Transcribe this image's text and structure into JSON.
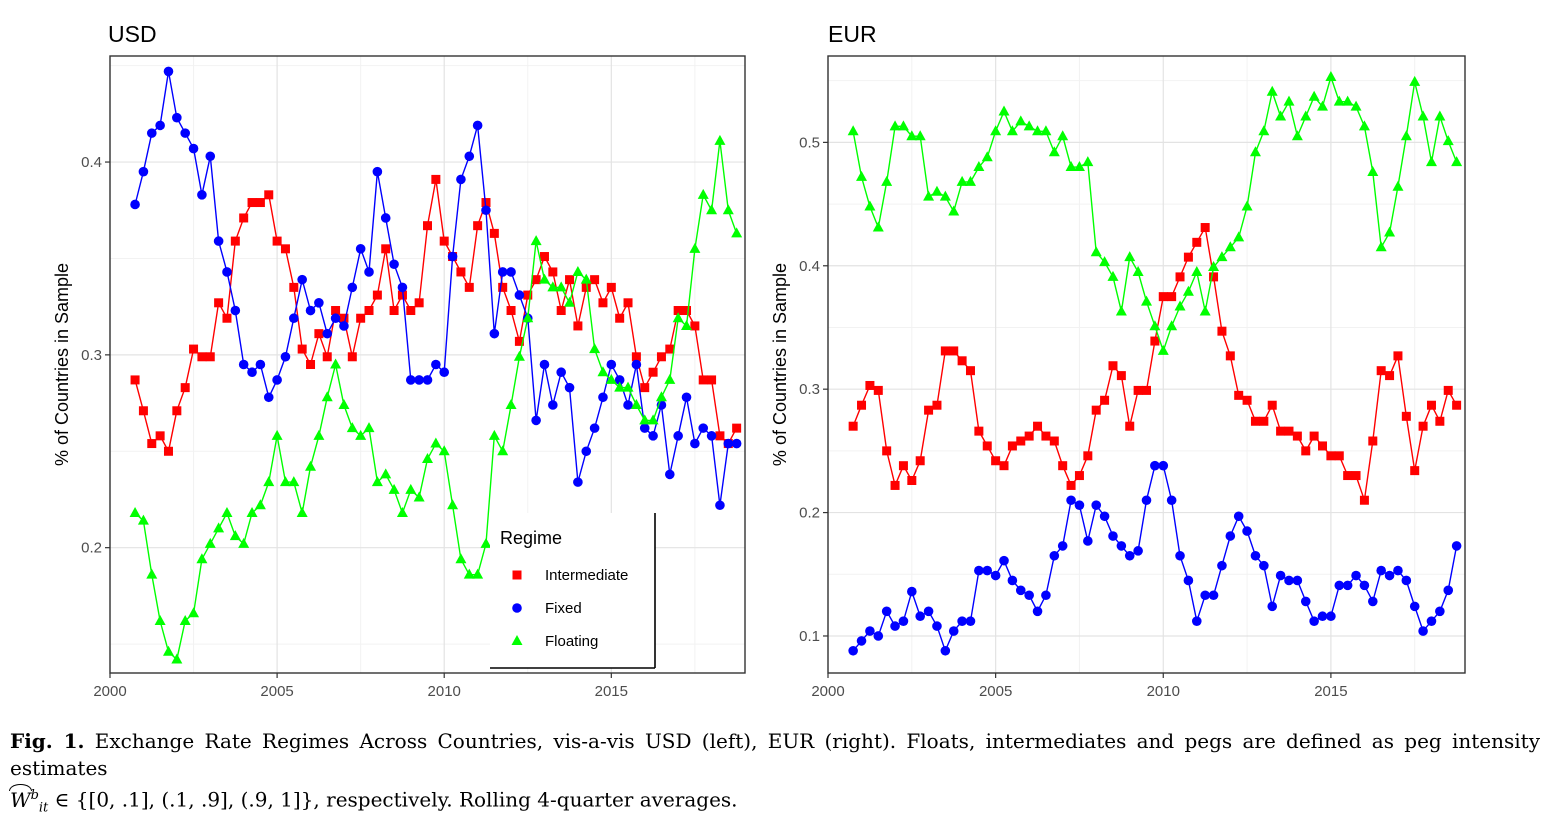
{
  "chart_data": [
    {
      "type": "line",
      "title": "USD",
      "xlabel": "",
      "ylabel": "% of Countries in Sample",
      "xlim": [
        2000,
        2019
      ],
      "ylim": [
        0.135,
        0.455
      ],
      "xticks": [
        2000,
        2005,
        2010,
        2015
      ],
      "yticks": [
        0.2,
        0.3,
        0.4
      ],
      "grid": true,
      "legend": {
        "title": "Regime",
        "placement": "bottom-center",
        "entries": [
          "Intermediate",
          "Fixed",
          "Floating"
        ]
      },
      "x": [
        2000.75,
        2001.0,
        2001.25,
        2001.5,
        2001.75,
        2002.0,
        2002.25,
        2002.5,
        2002.75,
        2003.0,
        2003.25,
        2003.5,
        2003.75,
        2004.0,
        2004.25,
        2004.5,
        2004.75,
        2005.0,
        2005.25,
        2005.5,
        2005.75,
        2006.0,
        2006.25,
        2006.5,
        2006.75,
        2007.0,
        2007.25,
        2007.5,
        2007.75,
        2008.0,
        2008.25,
        2008.5,
        2008.75,
        2009.0,
        2009.25,
        2009.5,
        2009.75,
        2010.0,
        2010.25,
        2010.5,
        2010.75,
        2011.0,
        2011.25,
        2011.5,
        2011.75,
        2012.0,
        2012.25,
        2012.5,
        2012.75,
        2013.0,
        2013.25,
        2013.5,
        2013.75,
        2014.0,
        2014.25,
        2014.5,
        2014.75,
        2015.0,
        2015.25,
        2015.5,
        2015.75,
        2016.0,
        2016.25,
        2016.5,
        2016.75,
        2017.0,
        2017.25,
        2017.5,
        2017.75,
        2018.0,
        2018.25,
        2018.5,
        2018.75
      ],
      "series": [
        {
          "name": "Intermediate",
          "color": "#ff0000",
          "marker": "square",
          "values": [
            0.287,
            0.271,
            0.254,
            0.258,
            0.25,
            0.271,
            0.283,
            0.303,
            0.299,
            0.299,
            0.327,
            0.319,
            0.359,
            0.371,
            0.379,
            0.379,
            0.383,
            0.359,
            0.355,
            0.335,
            0.303,
            0.295,
            0.311,
            0.299,
            0.323,
            0.319,
            0.299,
            0.319,
            0.323,
            0.331,
            0.355,
            0.323,
            0.331,
            0.323,
            0.327,
            0.367,
            0.391,
            0.359,
            0.351,
            0.343,
            0.335,
            0.367,
            0.379,
            0.363,
            0.335,
            0.323,
            0.307,
            0.331,
            0.339,
            0.351,
            0.343,
            0.323,
            0.339,
            0.315,
            0.335,
            0.339,
            0.327,
            0.335,
            0.319,
            0.327,
            0.299,
            0.283,
            0.291,
            0.299,
            0.303,
            0.323,
            0.323,
            0.315,
            0.287,
            0.287,
            0.258,
            0.254,
            0.262
          ]
        },
        {
          "name": "Fixed",
          "color": "#0000ff",
          "marker": "circle",
          "values": [
            0.378,
            0.395,
            0.415,
            0.419,
            0.447,
            0.423,
            0.415,
            0.407,
            0.383,
            0.403,
            0.359,
            0.343,
            0.323,
            0.295,
            0.291,
            0.295,
            0.278,
            0.287,
            0.299,
            0.319,
            0.339,
            0.323,
            0.327,
            0.311,
            0.319,
            0.315,
            0.335,
            0.355,
            0.343,
            0.395,
            0.371,
            0.347,
            0.335,
            0.287,
            0.287,
            0.287,
            0.295,
            0.291,
            0.351,
            0.391,
            0.403,
            0.419,
            0.375,
            0.311,
            0.343,
            0.343,
            0.331,
            0.319,
            0.266,
            0.295,
            0.274,
            0.291,
            0.283,
            0.234,
            0.25,
            0.262,
            0.278,
            0.295,
            0.287,
            0.274,
            0.295,
            0.262,
            0.258,
            0.274,
            0.238,
            0.258,
            0.278,
            0.254,
            0.262,
            0.258,
            0.222,
            0.254,
            0.254
          ]
        },
        {
          "name": "Floating",
          "color": "#00ff00",
          "marker": "triangle",
          "values": [
            0.218,
            0.214,
            0.186,
            0.162,
            0.146,
            0.142,
            0.162,
            0.166,
            0.194,
            0.202,
            0.21,
            0.218,
            0.206,
            0.202,
            0.218,
            0.222,
            0.234,
            0.258,
            0.234,
            0.234,
            0.218,
            0.242,
            0.258,
            0.278,
            0.295,
            0.274,
            0.262,
            0.258,
            0.262,
            0.234,
            0.238,
            0.23,
            0.218,
            0.23,
            0.226,
            0.246,
            0.254,
            0.25,
            0.222,
            0.194,
            0.186,
            0.186,
            0.202,
            0.258,
            0.25,
            0.274,
            0.299,
            0.319,
            0.359,
            0.339,
            0.335,
            0.335,
            0.327,
            0.343,
            0.339,
            0.303,
            0.291,
            0.287,
            0.283,
            0.283,
            0.274,
            0.266,
            0.266,
            0.278,
            0.287,
            0.319,
            0.315,
            0.355,
            0.383,
            0.375,
            0.411,
            0.375,
            0.363
          ]
        }
      ]
    },
    {
      "type": "line",
      "title": "EUR",
      "xlabel": "",
      "ylabel": "% of Countries in Sample",
      "xlim": [
        2000,
        2019
      ],
      "ylim": [
        0.07,
        0.57
      ],
      "xticks": [
        2000,
        2005,
        2010,
        2015
      ],
      "yticks": [
        0.1,
        0.2,
        0.3,
        0.4,
        0.5
      ],
      "grid": true,
      "x": [
        2000.75,
        2001.0,
        2001.25,
        2001.5,
        2001.75,
        2002.0,
        2002.25,
        2002.5,
        2002.75,
        2003.0,
        2003.25,
        2003.5,
        2003.75,
        2004.0,
        2004.25,
        2004.5,
        2004.75,
        2005.0,
        2005.25,
        2005.5,
        2005.75,
        2006.0,
        2006.25,
        2006.5,
        2006.75,
        2007.0,
        2007.25,
        2007.5,
        2007.75,
        2008.0,
        2008.25,
        2008.5,
        2008.75,
        2009.0,
        2009.25,
        2009.5,
        2009.75,
        2010.0,
        2010.25,
        2010.5,
        2010.75,
        2011.0,
        2011.25,
        2011.5,
        2011.75,
        2012.0,
        2012.25,
        2012.5,
        2012.75,
        2013.0,
        2013.25,
        2013.5,
        2013.75,
        2014.0,
        2014.25,
        2014.5,
        2014.75,
        2015.0,
        2015.25,
        2015.5,
        2015.75,
        2016.0,
        2016.25,
        2016.5,
        2016.75,
        2017.0,
        2017.25,
        2017.5,
        2017.75,
        2018.0,
        2018.25,
        2018.5,
        2018.75
      ],
      "series": [
        {
          "name": "Intermediate",
          "color": "#ff0000",
          "marker": "square",
          "values": [
            0.27,
            0.287,
            0.303,
            0.299,
            0.25,
            0.222,
            0.238,
            0.226,
            0.242,
            0.283,
            0.287,
            0.331,
            0.331,
            0.323,
            0.315,
            0.266,
            0.254,
            0.242,
            0.238,
            0.254,
            0.258,
            0.262,
            0.27,
            0.262,
            0.258,
            0.238,
            0.222,
            0.23,
            0.246,
            0.283,
            0.291,
            0.319,
            0.311,
            0.27,
            0.299,
            0.299,
            0.339,
            0.375,
            0.375,
            0.391,
            0.407,
            0.419,
            0.431,
            0.391,
            0.347,
            0.327,
            0.295,
            0.291,
            0.274,
            0.274,
            0.287,
            0.266,
            0.266,
            0.262,
            0.25,
            0.262,
            0.254,
            0.246,
            0.246,
            0.23,
            0.23,
            0.21,
            0.258,
            0.315,
            0.311,
            0.327,
            0.278,
            0.234,
            0.27,
            0.287,
            0.274,
            0.299,
            0.287
          ]
        },
        {
          "name": "Fixed",
          "color": "#0000ff",
          "marker": "circle",
          "values": [
            0.088,
            0.096,
            0.104,
            0.1,
            0.12,
            0.108,
            0.112,
            0.136,
            0.116,
            0.12,
            0.108,
            0.088,
            0.104,
            0.112,
            0.112,
            0.153,
            0.153,
            0.149,
            0.161,
            0.145,
            0.137,
            0.133,
            0.12,
            0.133,
            0.165,
            0.173,
            0.21,
            0.206,
            0.177,
            0.206,
            0.197,
            0.181,
            0.173,
            0.165,
            0.169,
            0.21,
            0.238,
            0.238,
            0.21,
            0.165,
            0.145,
            0.112,
            0.133,
            0.133,
            0.157,
            0.181,
            0.197,
            0.185,
            0.165,
            0.157,
            0.124,
            0.149,
            0.145,
            0.145,
            0.128,
            0.112,
            0.116,
            0.116,
            0.141,
            0.141,
            0.149,
            0.141,
            0.128,
            0.153,
            0.149,
            0.153,
            0.145,
            0.124,
            0.104,
            0.112,
            0.12,
            0.137,
            0.173
          ]
        },
        {
          "name": "Floating",
          "color": "#00ff00",
          "marker": "triangle",
          "values": [
            0.509,
            0.472,
            0.448,
            0.431,
            0.468,
            0.513,
            0.513,
            0.505,
            0.505,
            0.456,
            0.46,
            0.456,
            0.444,
            0.468,
            0.468,
            0.48,
            0.488,
            0.509,
            0.525,
            0.509,
            0.517,
            0.513,
            0.509,
            0.509,
            0.492,
            0.505,
            0.48,
            0.48,
            0.484,
            0.411,
            0.403,
            0.391,
            0.363,
            0.407,
            0.395,
            0.371,
            0.351,
            0.331,
            0.351,
            0.367,
            0.379,
            0.395,
            0.363,
            0.399,
            0.407,
            0.415,
            0.423,
            0.448,
            0.492,
            0.509,
            0.541,
            0.521,
            0.533,
            0.505,
            0.521,
            0.537,
            0.529,
            0.553,
            0.533,
            0.533,
            0.529,
            0.513,
            0.476,
            0.415,
            0.427,
            0.464,
            0.505,
            0.549,
            0.521,
            0.484,
            0.521,
            0.501,
            0.484
          ]
        }
      ]
    }
  ],
  "caption": {
    "label": "Fig. 1.",
    "text1": "Exchange Rate Regimes Across Countries, vis-a-vis USD (left), EUR (right). Floats, intermediates and pegs are defined as peg intensity estimates",
    "symbol": "W",
    "sup": "b",
    "sub": "it",
    "text2": "∈ {[0, .1], (.1, .9], (.9, 1]}, respectively. Rolling 4-quarter averages."
  }
}
